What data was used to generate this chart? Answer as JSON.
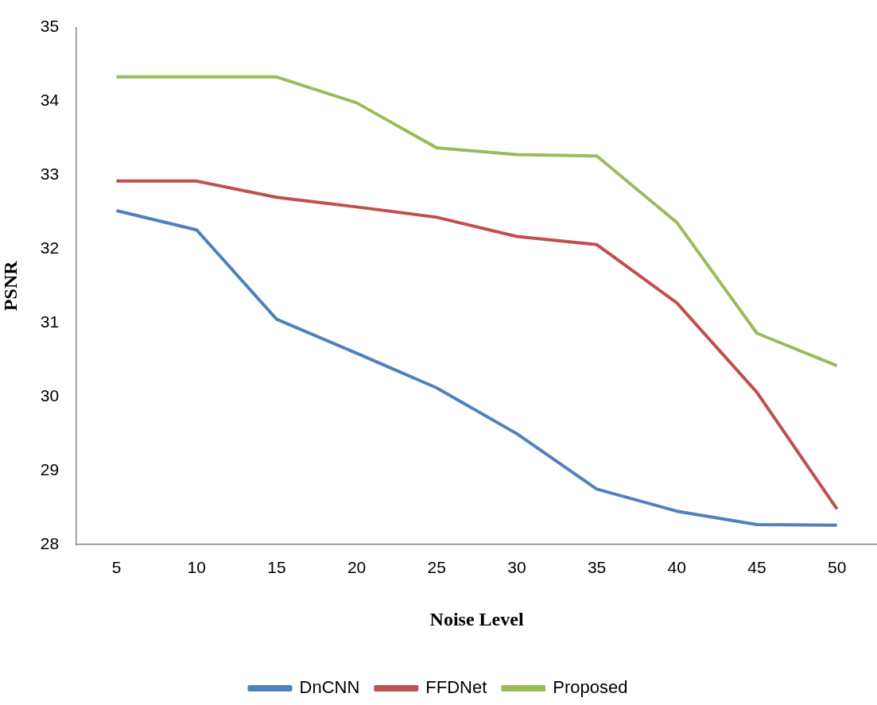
{
  "chart_data": {
    "type": "line",
    "xlabel": "Noise Level",
    "ylabel": "PSNR",
    "categories": [
      "5",
      "10",
      "15",
      "20",
      "25",
      "30",
      "35",
      "40",
      "45",
      "50"
    ],
    "series": [
      {
        "name": "DnCNN",
        "color": "#4f81bd",
        "values": [
          32.52,
          32.26,
          31.05,
          30.59,
          30.12,
          29.5,
          28.75,
          28.45,
          28.27,
          28.26
        ]
      },
      {
        "name": "FFDNet",
        "color": "#c0504d",
        "values": [
          32.92,
          32.92,
          32.7,
          32.57,
          32.43,
          32.17,
          32.06,
          31.27,
          30.06,
          28.48
        ]
      },
      {
        "name": "Proposed",
        "color": "#9bbb59",
        "values": [
          34.33,
          34.33,
          34.33,
          33.98,
          33.37,
          33.28,
          33.26,
          32.36,
          30.86,
          30.42
        ]
      }
    ],
    "ylim": [
      28,
      35
    ],
    "yticks": [
      28,
      29,
      30,
      31,
      32,
      33,
      34,
      35
    ],
    "grid": false,
    "legend": "bottom",
    "marker": "none",
    "line_style": "solid"
  }
}
